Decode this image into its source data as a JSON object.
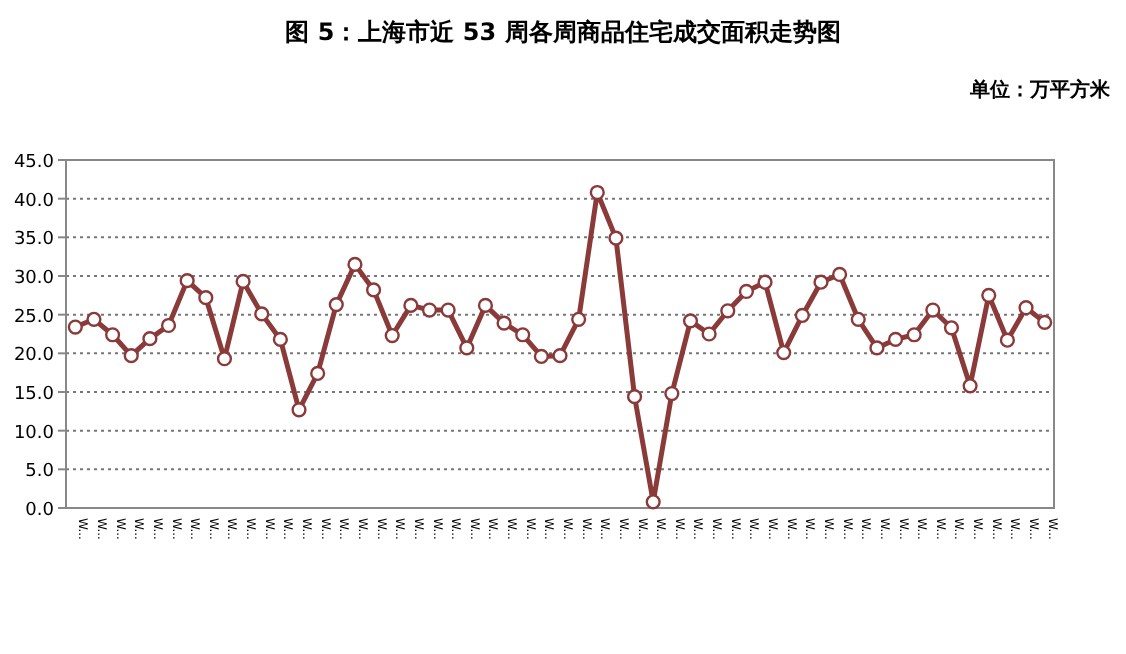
{
  "chart_data": {
    "type": "line",
    "title": "图 5：上海市近 53 周各周商品住宅成交面积走势图",
    "subtitle": "单位：万平方米",
    "categories": [
      "W...",
      "W...",
      "W...",
      "W...",
      "W...",
      "W...",
      "W...",
      "W...",
      "W...",
      "W...",
      "W...",
      "W...",
      "W...",
      "W...",
      "W...",
      "W...",
      "W...",
      "W...",
      "W...",
      "W...",
      "W...",
      "W...",
      "W...",
      "W...",
      "W...",
      "W...",
      "W...",
      "W...",
      "W...",
      "W...",
      "W...",
      "W...",
      "W...",
      "W...",
      "W...",
      "W...",
      "W...",
      "W...",
      "W...",
      "W...",
      "W...",
      "W...",
      "W...",
      "W...",
      "W...",
      "W...",
      "W...",
      "W...",
      "W...",
      "W...",
      "W...",
      "W...",
      "W..."
    ],
    "series": [
      {
        "color": "#8b3a3a",
        "values": [
          23.4,
          24.4,
          22.4,
          19.7,
          21.9,
          23.6,
          29.4,
          27.2,
          19.3,
          29.3,
          25.1,
          21.8,
          12.7,
          17.4,
          26.3,
          31.5,
          28.2,
          22.3,
          26.2,
          25.6,
          25.6,
          20.7,
          26.2,
          23.9,
          22.4,
          19.6,
          19.7,
          24.4,
          40.8,
          34.9,
          14.4,
          0.8,
          14.8,
          24.2,
          22.5,
          25.5,
          28.0,
          29.2,
          20.1,
          24.9,
          29.2,
          30.2,
          24.4,
          20.7,
          21.8,
          22.4,
          25.6,
          23.3,
          15.8,
          27.5,
          21.7,
          25.9,
          24.0
        ]
      }
    ],
    "ylim": [
      0,
      45
    ],
    "yticks": [
      {
        "value": 0,
        "label": "0.0"
      },
      {
        "value": 5,
        "label": "5.0"
      },
      {
        "value": 10,
        "label": "10.0"
      },
      {
        "value": 15,
        "label": "15.0"
      },
      {
        "value": 20,
        "label": "20.0"
      },
      {
        "value": 25,
        "label": "25.0"
      },
      {
        "value": 30,
        "label": "30.0"
      },
      {
        "value": 35,
        "label": "35.0"
      },
      {
        "value": 40,
        "label": "40.0"
      },
      {
        "value": 45,
        "label": "45.0"
      }
    ],
    "grid": "y",
    "marker": "circle",
    "line_style": "solid"
  }
}
